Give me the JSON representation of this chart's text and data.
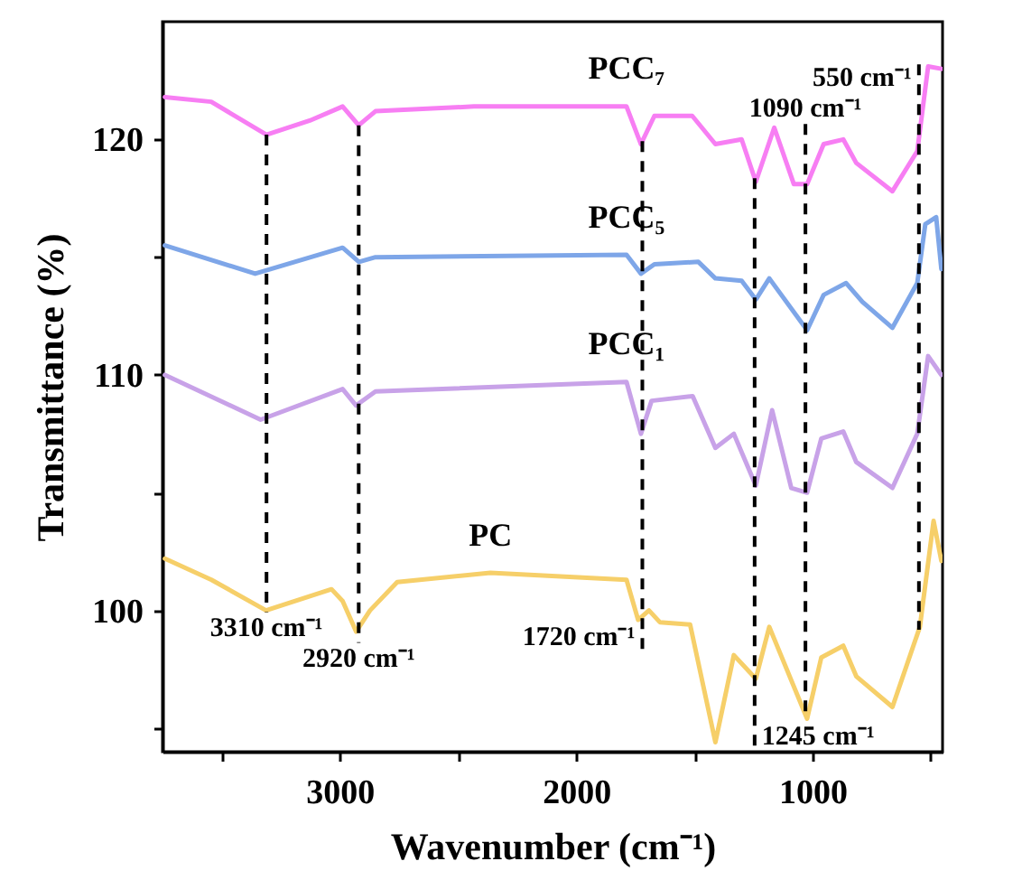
{
  "chart_data": {
    "type": "line",
    "xlabel": "Wavenumber (cm⁻¹)",
    "ylabel": "Transmittance (%)",
    "xlim": [
      3750,
      450
    ],
    "ylim": [
      94,
      125
    ],
    "xticks": [
      {
        "value": 3500,
        "label": null
      },
      3000,
      {
        "value": 2500,
        "label": null
      },
      2000,
      {
        "value": 1500,
        "label": null
      },
      1000,
      {
        "value": 500,
        "label": null
      }
    ],
    "yticks": [
      {
        "value": 95,
        "label": null
      },
      100,
      {
        "value": 105,
        "label": null
      },
      110,
      {
        "value": 115,
        "label": null
      },
      120
    ],
    "grid": false,
    "legend": false,
    "line_style": "solid",
    "series": [
      {
        "name": "PCC₇",
        "color": "#f77ef3",
        "x": [
          3740,
          3544,
          3310,
          3127,
          2988,
          2920,
          2849,
          2432,
          1787,
          1726,
          1669,
          1509,
          1411,
          1300,
          1240,
          1162,
          1079,
          1023,
          953,
          870,
          815,
          662,
          557,
          511,
          455
        ],
        "values": [
          121.8,
          121.6,
          120.2,
          120.8,
          121.4,
          120.6,
          121.2,
          121.4,
          121.4,
          119.8,
          121.0,
          121.0,
          119.8,
          120.0,
          118.2,
          120.5,
          118.1,
          118.1,
          119.8,
          120.0,
          119.0,
          117.8,
          119.5,
          123.1,
          123.0
        ]
      },
      {
        "name": "PCC₅",
        "color": "#7ea6e8",
        "x": [
          3740,
          3358,
          2988,
          2919,
          2849,
          1787,
          1726,
          1669,
          1483,
          1411,
          1300,
          1240,
          1183,
          1023,
          953,
          858,
          789,
          662,
          557,
          523,
          477,
          455
        ],
        "values": [
          115.5,
          114.3,
          115.4,
          114.8,
          115.0,
          115.1,
          114.3,
          114.7,
          114.8,
          114.1,
          114.0,
          113.2,
          114.1,
          111.9,
          113.4,
          113.9,
          113.1,
          112.0,
          113.9,
          116.4,
          116.7,
          114.5
        ]
      },
      {
        "name": "PCC₁",
        "color": "#c8a2e8",
        "x": [
          3740,
          3335,
          2988,
          2931,
          2849,
          1787,
          1726,
          1681,
          1507,
          1411,
          1333,
          1240,
          1171,
          1090,
          1023,
          963,
          870,
          815,
          662,
          557,
          511,
          455
        ],
        "values": [
          110.0,
          108.1,
          109.4,
          108.7,
          109.3,
          109.7,
          107.5,
          108.9,
          109.1,
          106.9,
          107.5,
          105.3,
          108.5,
          105.2,
          105.0,
          107.3,
          107.6,
          106.3,
          105.2,
          107.5,
          110.8,
          110.0
        ]
      },
      {
        "name": "PC",
        "color": "#f6cf69",
        "x": [
          3740,
          3543,
          3312,
          3035,
          2988,
          2931,
          2872,
          2757,
          2363,
          1787,
          1738,
          1692,
          1646,
          1518,
          1411,
          1333,
          1240,
          1183,
          1023,
          963,
          870,
          815,
          662,
          546,
          488,
          455
        ],
        "values": [
          102.2,
          101.3,
          100.0,
          100.9,
          100.4,
          99.1,
          100.0,
          101.2,
          101.6,
          101.3,
          99.6,
          100.0,
          99.5,
          99.4,
          94.4,
          98.1,
          97.1,
          99.3,
          95.4,
          98.0,
          98.5,
          97.2,
          95.9,
          99.3,
          103.8,
          102.1
        ]
      }
    ],
    "ref_lines": [
      {
        "axis": "x",
        "value": 3310,
        "label": "3310 cm⁻¹",
        "color": "#000000",
        "line_style": "dashed"
      },
      {
        "axis": "x",
        "value": 2920,
        "label": "2920 cm⁻¹",
        "color": "#000000",
        "line_style": "dashed"
      },
      {
        "axis": "x",
        "value": 1720,
        "label": "1720 cm⁻¹",
        "color": "#000000",
        "line_style": "dashed"
      },
      {
        "axis": "x",
        "value": 1245,
        "label": "1245 cm⁻¹",
        "color": "#000000",
        "line_style": "dashed"
      },
      {
        "axis": "x",
        "value": 1030,
        "label": "1090 cm⁻¹",
        "color": "#000000",
        "line_style": "dashed"
      },
      {
        "axis": "x",
        "value": 550,
        "label": "550 cm⁻¹",
        "color": "#000000",
        "line_style": "dashed"
      }
    ]
  }
}
